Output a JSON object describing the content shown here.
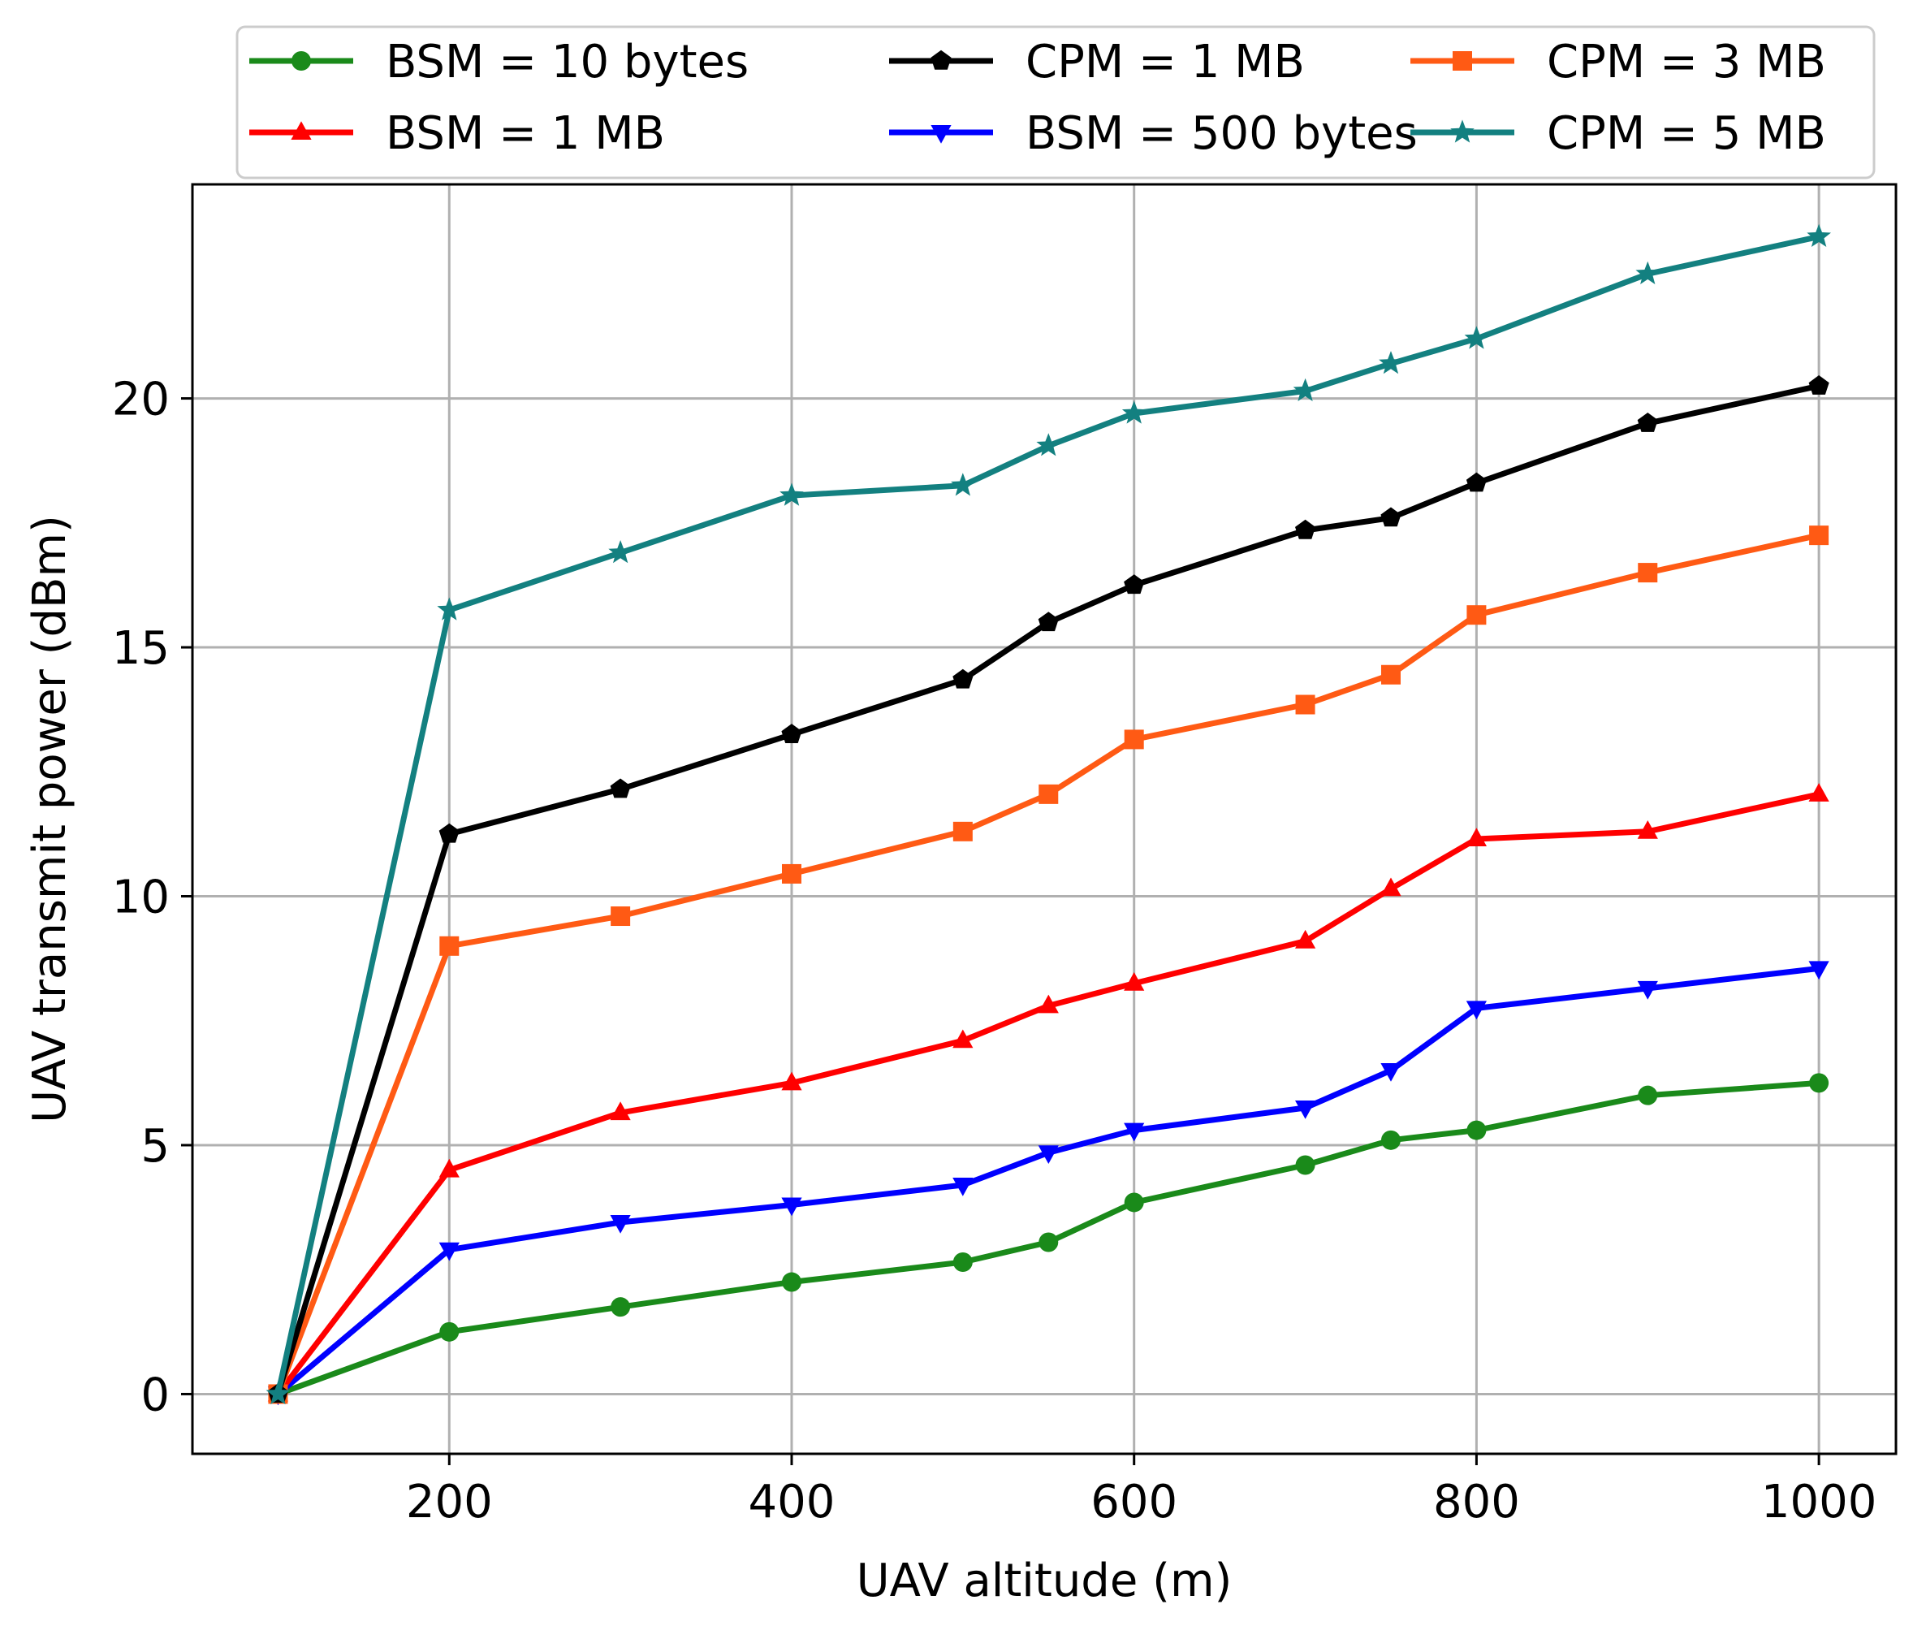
{
  "chart_data": {
    "type": "line",
    "title": "",
    "xlabel": "UAV altitude (m)",
    "ylabel": "UAV transmit power (dBm)",
    "xlim": [
      50,
      1045
    ],
    "ylim": [
      -1.2,
      24.3
    ],
    "xticks": [
      200,
      400,
      600,
      800,
      1000
    ],
    "yticks": [
      0,
      5,
      10,
      15,
      20
    ],
    "grid": true,
    "legend_position": "top",
    "x": [
      100,
      200,
      300,
      400,
      500,
      550,
      600,
      700,
      750,
      800,
      900,
      1000
    ],
    "series": [
      {
        "name": "BSM = 10 bytes",
        "color": "#1a8a1a",
        "marker": "circle",
        "values": [
          0,
          1.25,
          1.75,
          2.25,
          2.65,
          3.05,
          3.85,
          4.6,
          5.1,
          5.3,
          6.0,
          6.25
        ]
      },
      {
        "name": "BSM = 500 bytes",
        "color": "#0000ff",
        "marker": "triangle-down",
        "values": [
          0,
          2.9,
          3.45,
          3.8,
          4.2,
          4.85,
          5.3,
          5.75,
          6.5,
          7.75,
          8.15,
          8.55
        ]
      },
      {
        "name": "BSM = 1 MB",
        "color": "#ff0000",
        "marker": "triangle-up",
        "values": [
          0,
          4.5,
          5.65,
          6.25,
          7.1,
          7.8,
          8.25,
          9.1,
          10.15,
          11.15,
          11.3,
          12.05
        ]
      },
      {
        "name": "CPM = 3 MB",
        "color": "#ff5a14",
        "marker": "square",
        "values": [
          0,
          9.0,
          9.6,
          10.45,
          11.3,
          12.05,
          13.15,
          13.85,
          14.45,
          15.65,
          16.5,
          17.25
        ]
      },
      {
        "name": "CPM = 1 MB",
        "color": "#000000",
        "marker": "pentagon",
        "values": [
          0,
          11.25,
          12.15,
          13.25,
          14.35,
          15.5,
          16.25,
          17.35,
          17.6,
          18.3,
          19.5,
          20.25
        ]
      },
      {
        "name": "CPM = 5 MB",
        "color": "#138080",
        "marker": "star",
        "values": [
          0,
          15.75,
          16.9,
          18.05,
          18.25,
          19.05,
          19.7,
          20.15,
          20.7,
          21.2,
          22.5,
          23.25
        ]
      }
    ],
    "legend_order": [
      0,
      2,
      4,
      1,
      3,
      5
    ]
  }
}
